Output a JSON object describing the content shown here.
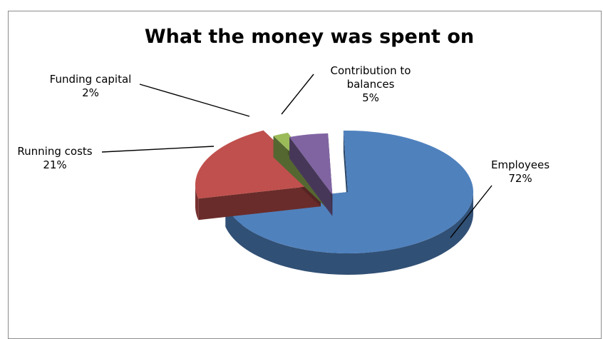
{
  "chart_data": {
    "type": "pie",
    "title": "What the money was spent on",
    "categories": [
      "Employees",
      "Running costs",
      "Funding capital",
      "Contribution to balances"
    ],
    "values": [
      72,
      21,
      2,
      5
    ],
    "labels": [
      "72%",
      "21%",
      "2%",
      "5%"
    ],
    "colors": [
      "#4f81bd",
      "#c0504d",
      "#9bbb59",
      "#8064a2"
    ],
    "exploded": true,
    "three_d": true
  }
}
